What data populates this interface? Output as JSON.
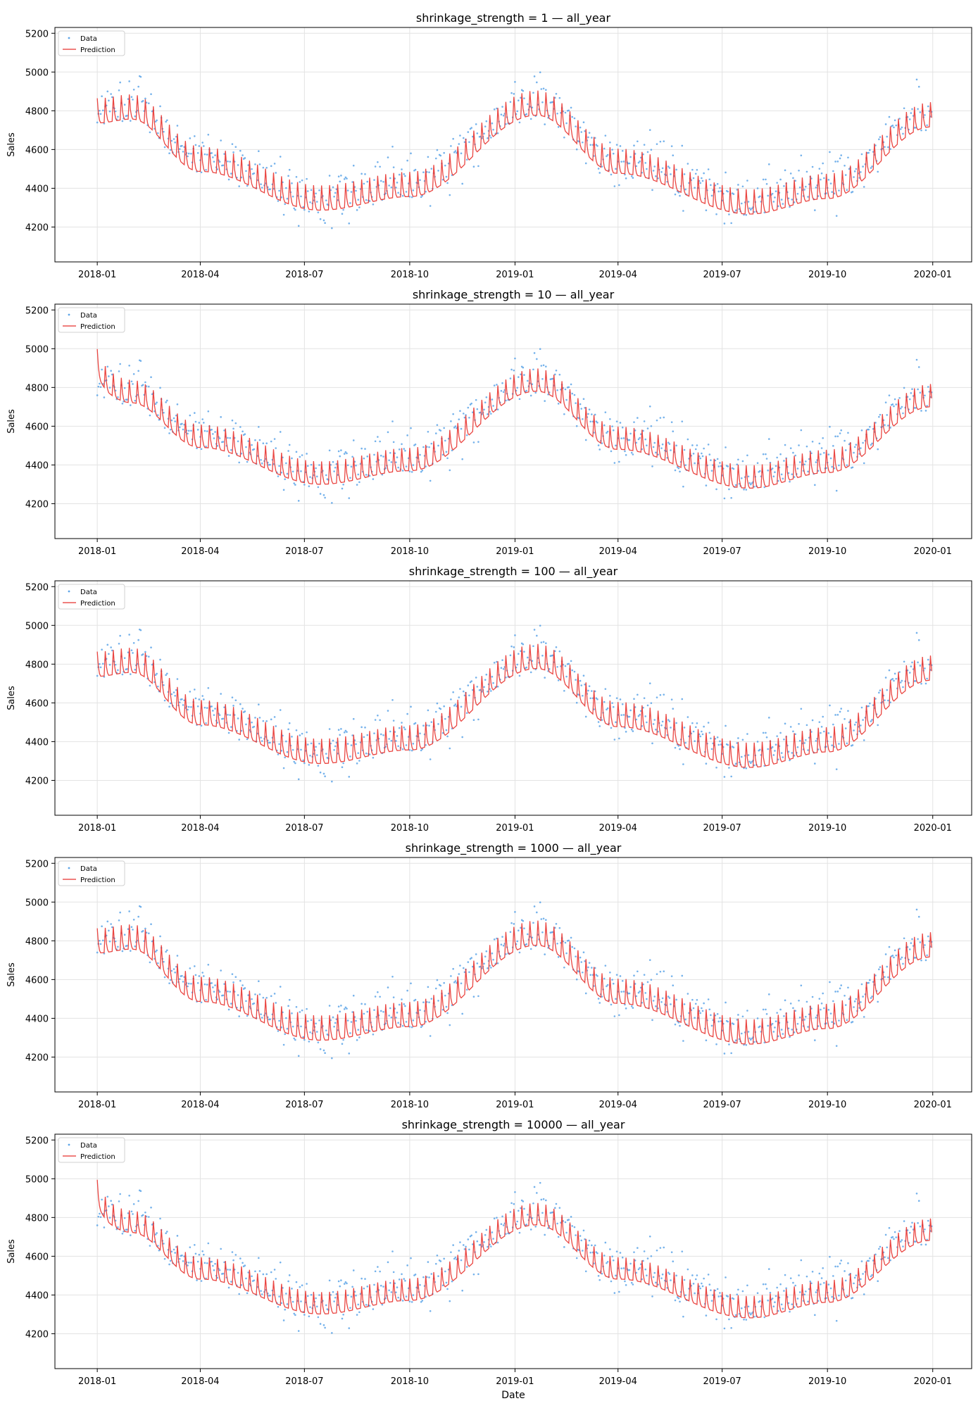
{
  "figure": {
    "xlabel": "Date",
    "ylabel": "Sales"
  },
  "legend": {
    "data_label": "Data",
    "prediction_label": "Prediction",
    "placement": "upper-left"
  },
  "colors": {
    "data": "#5da5e8",
    "prediction": "#e8322e",
    "grid": "#e3e3e3"
  },
  "chart_data": [
    {
      "type": "line",
      "title": "shrinkage_strength = 1 — all_year",
      "xlabel": "",
      "ylabel": "Sales",
      "xlim": [
        "2017-11-25",
        "2020-02-04"
      ],
      "ylim": [
        4020,
        5230
      ],
      "x_ticks": [
        "2018-01",
        "2018-04",
        "2018-07",
        "2018-10",
        "2019-01",
        "2019-04",
        "2019-07",
        "2019-10",
        "2020-01"
      ],
      "y_ticks": [
        4200,
        4400,
        4600,
        4800,
        5000,
        5200
      ],
      "grid": true,
      "series": [
        {
          "name": "Data",
          "kind": "scatter",
          "x_range": [
            "2018-01-01",
            "2019-12-31"
          ],
          "pattern": "seasonal daily observations, peak ~4800 in late Jan, trough ~4300 in July"
        },
        {
          "name": "Prediction",
          "kind": "line",
          "x": [
            "2018-01-01",
            "2018-01-31",
            "2018-04-01",
            "2018-07-15",
            "2018-10-01",
            "2019-01-20",
            "2019-04-01",
            "2019-07-25",
            "2019-10-01",
            "2019-12-31"
          ],
          "y": [
            4780,
            4800,
            4530,
            4330,
            4400,
            4820,
            4520,
            4310,
            4390,
            4760
          ],
          "weekly_amplitude": 130,
          "start_spike": 0
        }
      ]
    },
    {
      "type": "line",
      "title": "shrinkage_strength = 10 — all_year",
      "xlabel": "",
      "ylabel": "Sales",
      "xlim": [
        "2017-11-25",
        "2020-02-04"
      ],
      "ylim": [
        4020,
        5230
      ],
      "x_ticks": [
        "2018-01",
        "2018-04",
        "2018-07",
        "2018-10",
        "2019-01",
        "2019-04",
        "2019-07",
        "2019-10",
        "2020-01"
      ],
      "y_ticks": [
        4200,
        4400,
        4600,
        4800,
        5000,
        5200
      ],
      "grid": true,
      "series": [
        {
          "name": "Data",
          "kind": "scatter",
          "x_range": [
            "2018-01-01",
            "2019-12-31"
          ],
          "pattern": "seasonal daily observations"
        },
        {
          "name": "Prediction",
          "kind": "line",
          "x": [
            "2018-01-01",
            "2018-01-31",
            "2018-04-01",
            "2018-07-15",
            "2018-10-01",
            "2019-01-20",
            "2019-04-01",
            "2019-07-25",
            "2019-10-01",
            "2019-12-31"
          ],
          "y": [
            4800,
            4760,
            4530,
            4340,
            4410,
            4820,
            4520,
            4320,
            4400,
            4740
          ],
          "weekly_amplitude": 120,
          "start_spike": 120
        }
      ]
    },
    {
      "type": "line",
      "title": "shrinkage_strength = 100 — all_year",
      "xlabel": "",
      "ylabel": "Sales",
      "xlim": [
        "2017-11-25",
        "2020-02-04"
      ],
      "ylim": [
        4020,
        5230
      ],
      "x_ticks": [
        "2018-01",
        "2018-04",
        "2018-07",
        "2018-10",
        "2019-01",
        "2019-04",
        "2019-07",
        "2019-10",
        "2020-01"
      ],
      "y_ticks": [
        4200,
        4400,
        4600,
        4800,
        5000,
        5200
      ],
      "grid": true,
      "series": [
        {
          "name": "Data",
          "kind": "scatter",
          "x_range": [
            "2018-01-01",
            "2019-12-31"
          ],
          "pattern": "seasonal daily observations"
        },
        {
          "name": "Prediction",
          "kind": "line",
          "x": [
            "2018-01-01",
            "2018-01-31",
            "2018-04-01",
            "2018-07-15",
            "2018-10-01",
            "2019-01-20",
            "2019-04-01",
            "2019-07-25",
            "2019-10-01",
            "2019-12-31"
          ],
          "y": [
            4780,
            4800,
            4530,
            4330,
            4400,
            4820,
            4520,
            4310,
            4390,
            4760
          ],
          "weekly_amplitude": 130,
          "start_spike": 0
        }
      ]
    },
    {
      "type": "line",
      "title": "shrinkage_strength = 1000 — all_year",
      "xlabel": "",
      "ylabel": "Sales",
      "xlim": [
        "2017-11-25",
        "2020-02-04"
      ],
      "ylim": [
        4020,
        5230
      ],
      "x_ticks": [
        "2018-01",
        "2018-04",
        "2018-07",
        "2018-10",
        "2019-01",
        "2019-04",
        "2019-07",
        "2019-10",
        "2020-01"
      ],
      "y_ticks": [
        4200,
        4400,
        4600,
        4800,
        5000,
        5200
      ],
      "grid": true,
      "series": [
        {
          "name": "Data",
          "kind": "scatter",
          "x_range": [
            "2018-01-01",
            "2019-12-31"
          ],
          "pattern": "seasonal daily observations"
        },
        {
          "name": "Prediction",
          "kind": "line",
          "x": [
            "2018-01-01",
            "2018-01-31",
            "2018-04-01",
            "2018-07-15",
            "2018-10-01",
            "2019-01-20",
            "2019-04-01",
            "2019-07-25",
            "2019-10-01",
            "2019-12-31"
          ],
          "y": [
            4780,
            4800,
            4530,
            4330,
            4400,
            4820,
            4520,
            4310,
            4390,
            4760
          ],
          "weekly_amplitude": 130,
          "start_spike": 0
        }
      ]
    },
    {
      "type": "line",
      "title": "shrinkage_strength = 10000 — all_year",
      "xlabel": "Date",
      "ylabel": "Sales",
      "xlim": [
        "2017-11-25",
        "2020-02-04"
      ],
      "ylim": [
        4020,
        5230
      ],
      "x_ticks": [
        "2018-01",
        "2018-04",
        "2018-07",
        "2018-10",
        "2019-01",
        "2019-04",
        "2019-07",
        "2019-10",
        "2020-01"
      ],
      "y_ticks": [
        4200,
        4400,
        4600,
        4800,
        5000,
        5200
      ],
      "grid": true,
      "series": [
        {
          "name": "Data",
          "kind": "scatter",
          "x_range": [
            "2018-01-01",
            "2019-12-31"
          ],
          "pattern": "seasonal daily observations"
        },
        {
          "name": "Prediction",
          "kind": "line",
          "x": [
            "2018-01-01",
            "2018-01-31",
            "2018-04-01",
            "2018-07-15",
            "2018-10-01",
            "2019-01-20",
            "2019-04-01",
            "2019-07-25",
            "2019-10-01",
            "2019-12-31"
          ],
          "y": [
            4800,
            4760,
            4520,
            4340,
            4410,
            4800,
            4520,
            4320,
            4400,
            4720
          ],
          "weekly_amplitude": 115,
          "start_spike": 120
        }
      ]
    }
  ]
}
